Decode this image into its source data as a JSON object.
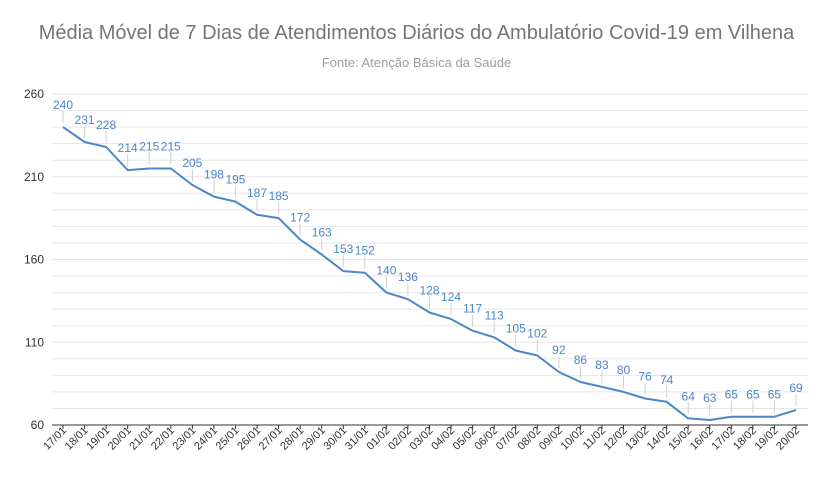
{
  "chart_data": {
    "type": "line",
    "title": "Média Móvel de 7 Dias de Atendimentos Diários do Ambulatório Covid-19 em Vilhena",
    "subtitle": "Fonte: Atenção Básica da Saúde",
    "categories": [
      "17/01",
      "18/01",
      "19/01",
      "20/01",
      "21/01",
      "22/01",
      "23/01",
      "24/01",
      "25/01",
      "26/01",
      "27/01",
      "28/01",
      "29/01",
      "30/01",
      "31/01",
      "01/02",
      "02/02",
      "03/02",
      "04/02",
      "05/02",
      "06/02",
      "07/02",
      "08/02",
      "09/02",
      "10/02",
      "11/02",
      "12/02",
      "13/02",
      "14/02",
      "15/02",
      "16/02",
      "17/02",
      "18/02",
      "19/02",
      "20/02"
    ],
    "values": [
      240,
      231,
      228,
      214,
      215,
      215,
      205,
      198,
      195,
      187,
      185,
      172,
      163,
      153,
      152,
      140,
      136,
      128,
      124,
      117,
      113,
      105,
      102,
      92,
      86,
      83,
      80,
      76,
      74,
      64,
      63,
      65,
      65,
      65,
      69
    ],
    "ylim": [
      60,
      260
    ],
    "yticks": [
      "260",
      "210",
      "160",
      "110",
      "60"
    ],
    "ytick_values": [
      260,
      210,
      160,
      110,
      60
    ],
    "grid": true,
    "data_labels": true,
    "line_color": "#4a86c8"
  }
}
